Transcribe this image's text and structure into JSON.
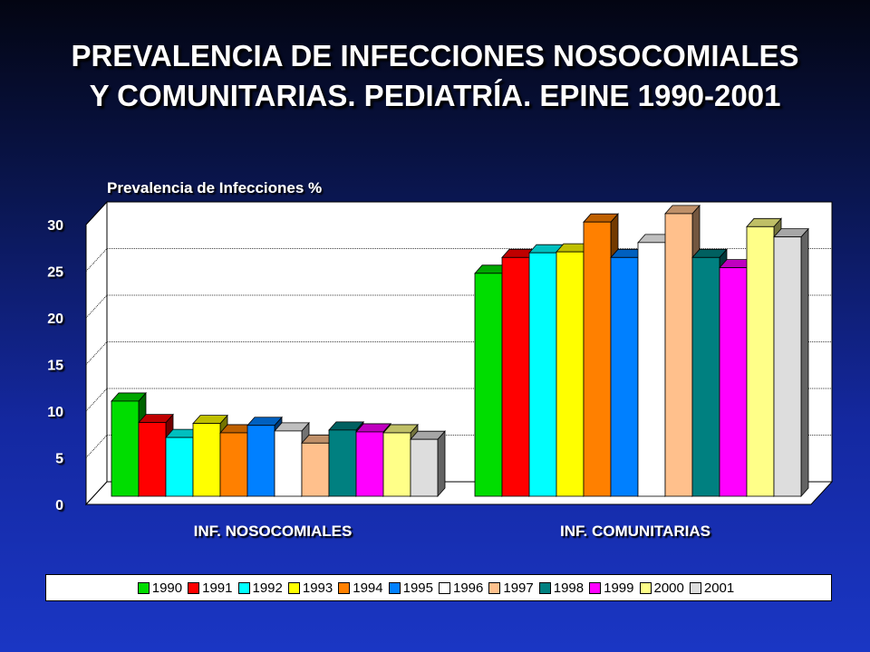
{
  "title": {
    "line1": "PREVALENCIA DE INFECCIONES NOSOCOMIALES",
    "line2": "Y COMUNITARIAS. PEDIATRÍA. EPINE 1990-2001"
  },
  "chart_data": {
    "type": "bar",
    "title": "PREVALENCIA DE INFECCIONES NOSOCOMIALES Y COMUNITARIAS. PEDIATRÍA. EPINE 1990-2001",
    "ylabel": "Prevalencia de Infecciones %",
    "xlabel": "",
    "categories": [
      "INF. NOSOCOMIALES",
      "INF. COMUNITARIAS"
    ],
    "ylim": [
      0,
      30
    ],
    "yticks": [
      "0",
      "5",
      "10",
      "15",
      "20",
      "25",
      "30"
    ],
    "grid": true,
    "three_d": true,
    "legend_position": "bottom",
    "series": [
      {
        "name": "1990",
        "color": "#00dd00",
        "values": [
          10.2,
          23.9
        ]
      },
      {
        "name": "1991",
        "color": "#ff0000",
        "values": [
          7.9,
          25.6
        ]
      },
      {
        "name": "1992",
        "color": "#00ffff",
        "values": [
          6.3,
          26.1
        ]
      },
      {
        "name": "1993",
        "color": "#ffff00",
        "values": [
          7.8,
          26.2
        ]
      },
      {
        "name": "1994",
        "color": "#ff8000",
        "values": [
          6.8,
          29.4
        ]
      },
      {
        "name": "1995",
        "color": "#0080ff",
        "values": [
          7.6,
          25.6
        ]
      },
      {
        "name": "1996",
        "color": "#ffffff",
        "values": [
          7.0,
          27.2
        ]
      },
      {
        "name": "1997",
        "color": "#ffc08c",
        "values": [
          5.7,
          30.3
        ]
      },
      {
        "name": "1998",
        "color": "#008080",
        "values": [
          7.1,
          25.6
        ]
      },
      {
        "name": "1999",
        "color": "#ff00ff",
        "values": [
          6.9,
          24.5
        ]
      },
      {
        "name": "2000",
        "color": "#ffff88",
        "values": [
          6.8,
          28.9
        ]
      },
      {
        "name": "2001",
        "color": "#dddddd",
        "values": [
          6.1,
          27.8
        ]
      }
    ]
  }
}
